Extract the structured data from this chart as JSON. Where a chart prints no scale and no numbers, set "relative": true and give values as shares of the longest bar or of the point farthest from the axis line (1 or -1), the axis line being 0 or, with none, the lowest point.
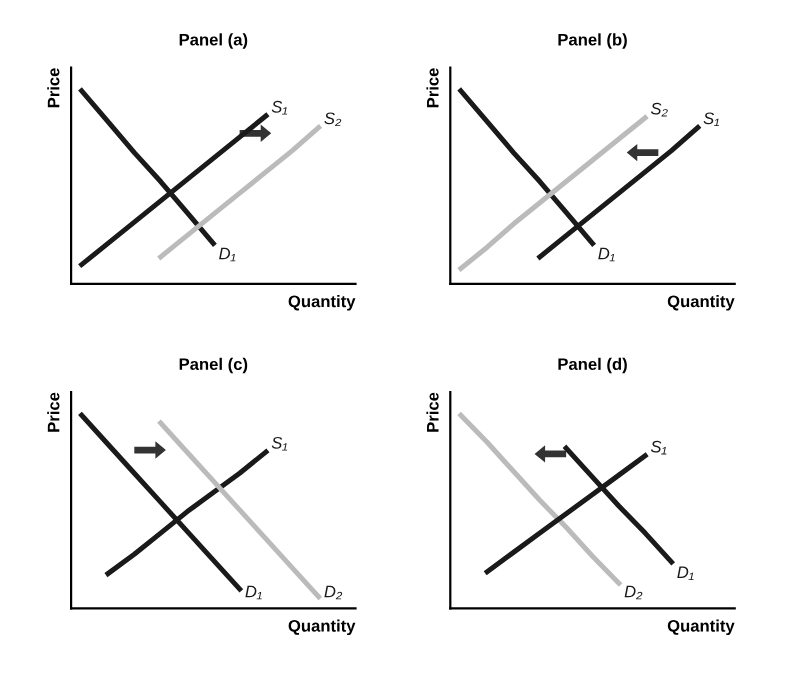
{
  "chart_data": [
    {
      "type": "line",
      "title": "Panel (a)",
      "xlabel": "Quantity",
      "ylabel": "Price",
      "relative": true,
      "tick_labels": false,
      "legend": false,
      "grid": false,
      "categories": [
        null,
        null,
        null,
        null,
        null,
        null,
        null,
        null,
        null,
        null,
        null
      ],
      "series": [
        {
          "name": "D₁",
          "color": "#1a1a1a",
          "values": [
            1.0,
            0.84,
            0.68,
            0.53,
            0.37,
            0.21,
            null,
            null,
            null,
            null,
            null
          ]
        },
        {
          "name": "S₁",
          "color": "#1a1a1a",
          "values": [
            0.1,
            0.21,
            0.32,
            0.43,
            0.54,
            0.65,
            0.76,
            0.87,
            null,
            null,
            null
          ]
        },
        {
          "name": "S₂",
          "color": "#bbbbbb",
          "values": [
            null,
            null,
            null,
            0.14,
            0.25,
            0.36,
            0.47,
            0.58,
            0.69,
            0.81,
            null
          ]
        }
      ]
    },
    {
      "type": "line",
      "title": "Panel (b)",
      "xlabel": "Quantity",
      "ylabel": "Price",
      "relative": true,
      "tick_labels": false,
      "legend": false,
      "grid": false,
      "categories": [
        null,
        null,
        null,
        null,
        null,
        null,
        null,
        null,
        null,
        null,
        null
      ],
      "series": [
        {
          "name": "D₁",
          "color": "#1a1a1a",
          "values": [
            1.0,
            0.84,
            0.68,
            0.53,
            0.37,
            0.21,
            null,
            null,
            null,
            null,
            null
          ]
        },
        {
          "name": "S₂",
          "color": "#bbbbbb",
          "values": [
            0.08,
            0.19,
            0.31,
            0.42,
            0.53,
            0.64,
            0.75,
            0.86,
            null,
            null,
            null
          ]
        },
        {
          "name": "S₁",
          "color": "#1a1a1a",
          "values": [
            null,
            null,
            null,
            0.14,
            0.25,
            0.36,
            0.47,
            0.58,
            0.69,
            0.81,
            null
          ]
        }
      ]
    },
    {
      "type": "line",
      "title": "Panel (c)",
      "xlabel": "Quantity",
      "ylabel": "Price",
      "relative": true,
      "tick_labels": false,
      "legend": false,
      "grid": false,
      "categories": [
        null,
        null,
        null,
        null,
        null,
        null,
        null,
        null,
        null,
        null,
        null
      ],
      "series": [
        {
          "name": "D₁",
          "color": "#1a1a1a",
          "values": [
            1.0,
            0.85,
            0.7,
            0.55,
            0.4,
            0.25,
            0.1,
            null,
            null,
            null,
            null
          ]
        },
        {
          "name": "S₁",
          "color": "#1a1a1a",
          "values": [
            null,
            0.18,
            0.28,
            0.39,
            0.5,
            0.6,
            0.7,
            0.81,
            null,
            null,
            null
          ]
        },
        {
          "name": "D₂",
          "color": "#bbbbbb",
          "values": [
            null,
            null,
            null,
            0.96,
            0.81,
            0.66,
            0.51,
            0.36,
            0.21,
            0.06,
            null
          ]
        }
      ]
    },
    {
      "type": "line",
      "title": "Panel (d)",
      "xlabel": "Quantity",
      "ylabel": "Price",
      "relative": true,
      "tick_labels": false,
      "legend": false,
      "grid": false,
      "categories": [
        null,
        null,
        null,
        null,
        null,
        null,
        null,
        null,
        null,
        null,
        null
      ],
      "series": [
        {
          "name": "D₂",
          "color": "#bbbbbb",
          "values": [
            1.0,
            0.86,
            0.71,
            0.56,
            0.42,
            0.27,
            0.13,
            null,
            null,
            null,
            null
          ]
        },
        {
          "name": "D₁",
          "color": "#1a1a1a",
          "values": [
            null,
            null,
            null,
            null,
            0.83,
            0.68,
            0.53,
            0.39,
            0.24,
            null,
            null
          ]
        },
        {
          "name": "S₁",
          "color": "#1a1a1a",
          "values": [
            null,
            0.19,
            0.29,
            0.39,
            0.49,
            0.59,
            0.69,
            0.79,
            null,
            null,
            null
          ]
        }
      ]
    }
  ]
}
